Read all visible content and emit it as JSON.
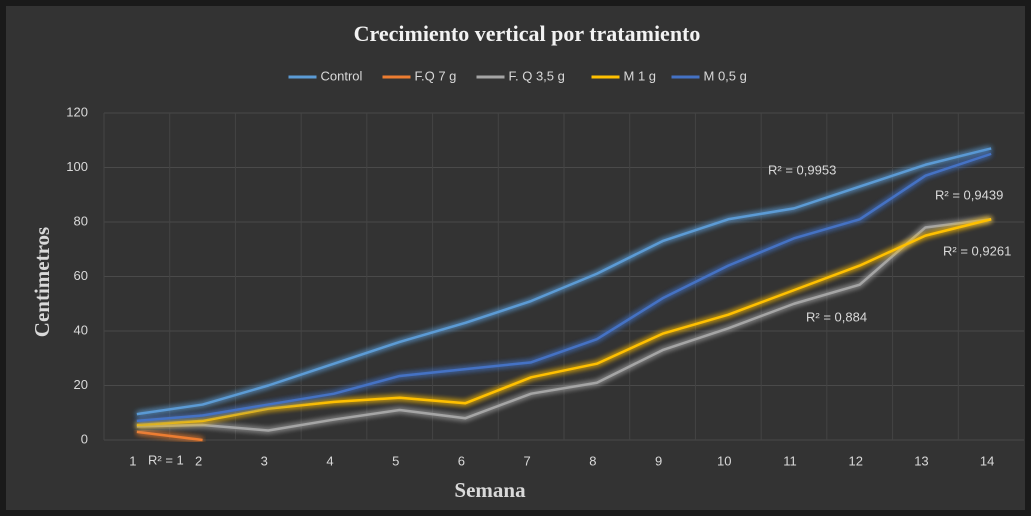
{
  "chart_data": {
    "type": "line",
    "title": "Crecimiento vertical por tratamiento",
    "x_label": "Semana",
    "y_label": "Centimetros",
    "categories": [
      1,
      2,
      3,
      4,
      5,
      6,
      7,
      8,
      9,
      10,
      11,
      12,
      13,
      14
    ],
    "ylim": [
      0,
      120
    ],
    "yticks": [
      0,
      20,
      40,
      60,
      80,
      100,
      120
    ],
    "grid": true,
    "legend": "top",
    "series": [
      {
        "name": "Control",
        "color": "#5b9bd5",
        "values": [
          9.5,
          13,
          20,
          28,
          36,
          43,
          51,
          61,
          73,
          81,
          85,
          93,
          101,
          107
        ]
      },
      {
        "name": "F.Q 7 g",
        "color": "#ed7d31",
        "values": [
          3,
          0,
          null,
          null,
          null,
          null,
          null,
          null,
          null,
          null,
          null,
          null,
          null,
          null
        ]
      },
      {
        "name": "F. Q 3,5 g",
        "color": "#a5a5a5",
        "values": [
          5,
          5.5,
          3.5,
          7.5,
          11,
          8,
          17,
          21,
          33,
          41,
          50,
          57,
          78,
          81
        ]
      },
      {
        "name": "M 1 g",
        "color": "#ffc000",
        "values": [
          5.5,
          7,
          11.5,
          14,
          15.5,
          13.5,
          23,
          28,
          39,
          46,
          55,
          64,
          75,
          81
        ]
      },
      {
        "name": "M 0,5 g",
        "color": "#4472c4",
        "values": [
          7,
          9,
          13,
          17,
          23.5,
          26,
          28.5,
          37,
          52,
          64,
          74,
          81,
          97,
          105
        ]
      }
    ],
    "annotations": [
      "R² = 0,9953",
      "R² = 1",
      "R² = 0,9439",
      "R² = 0,9261",
      "R² = 0,884"
    ]
  }
}
